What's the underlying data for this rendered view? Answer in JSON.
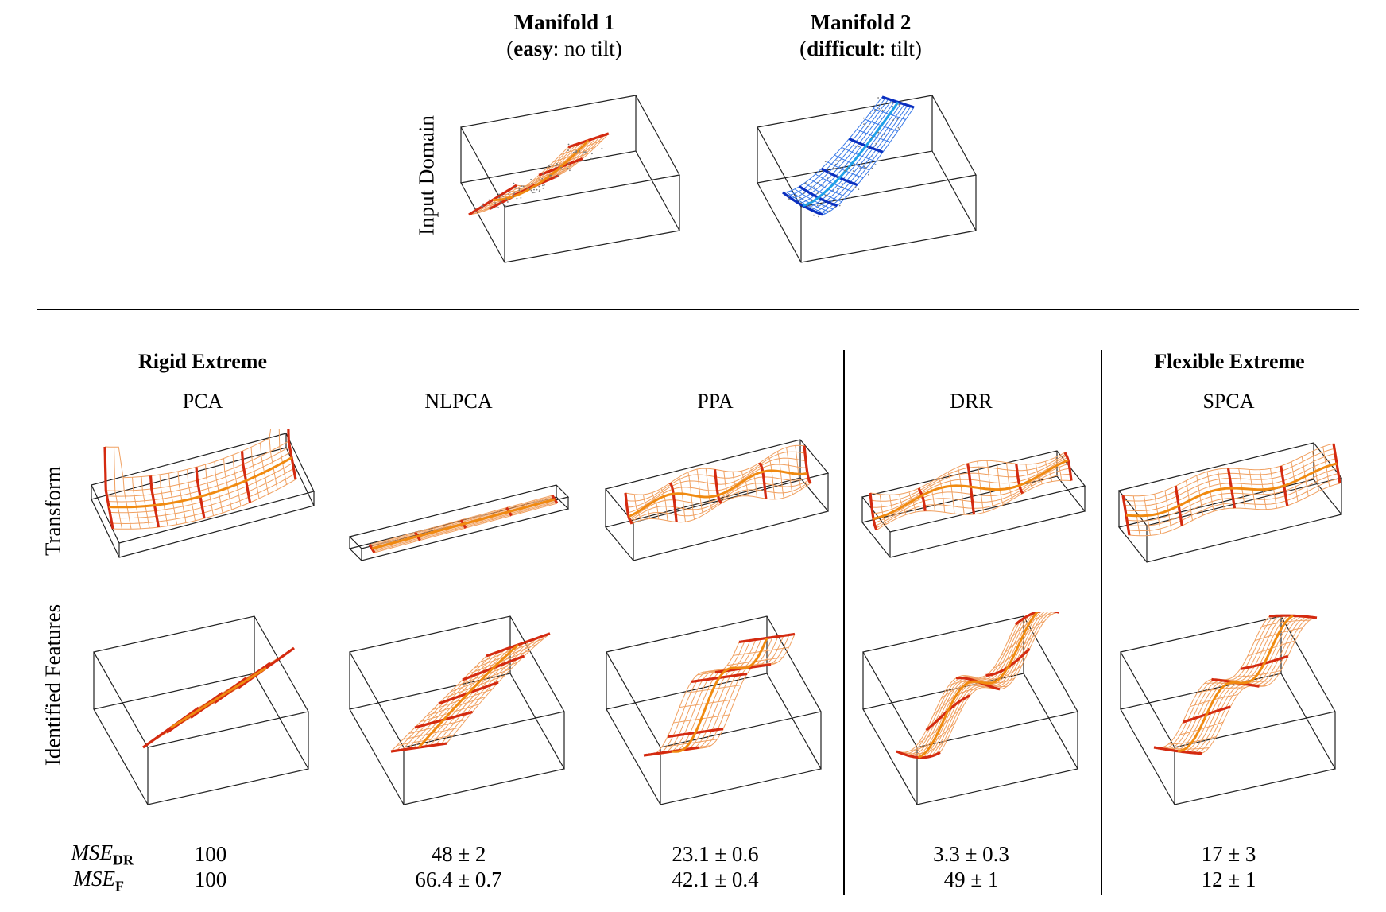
{
  "manifolds": [
    {
      "title": "Manifold 1",
      "subtitle_bold": "easy",
      "subtitle_rest": ": no tilt)",
      "color": "#e8700a"
    },
    {
      "title": "Manifold 2",
      "subtitle_bold": "difficult",
      "subtitle_rest": ": tilt)",
      "color": "#1a4fd8"
    }
  ],
  "input_domain_label": "Input Domain",
  "sections": {
    "rigid": "Rigid Extreme",
    "flexible": "Flexible Extreme"
  },
  "methods": [
    "PCA",
    "NLPCA",
    "PPA",
    "DRR",
    "SPCA"
  ],
  "row_labels": {
    "transform": "Transform",
    "features": "Identified Features"
  },
  "metrics": {
    "mse_dr": {
      "label": "MSE",
      "sub": "DR",
      "values": [
        "100",
        "48 ± 2",
        "23.1 ± 0.6",
        "3.3 ± 0.3",
        "17 ± 3"
      ]
    },
    "mse_f": {
      "label": "MSE",
      "sub": "F",
      "values": [
        "100",
        "66.4 ± 0.7",
        "42.1 ± 0.4",
        "49 ± 1",
        "12 ± 1"
      ]
    }
  },
  "colors": {
    "grid_orange": "#f0a060",
    "grid_red": "#d42a10",
    "grid_mid": "#f08a10",
    "grid_blue": "#3a7ae8",
    "grid_blue_dark": "#0b2fbf",
    "grid_blue_mid": "#1fa0e8"
  }
}
